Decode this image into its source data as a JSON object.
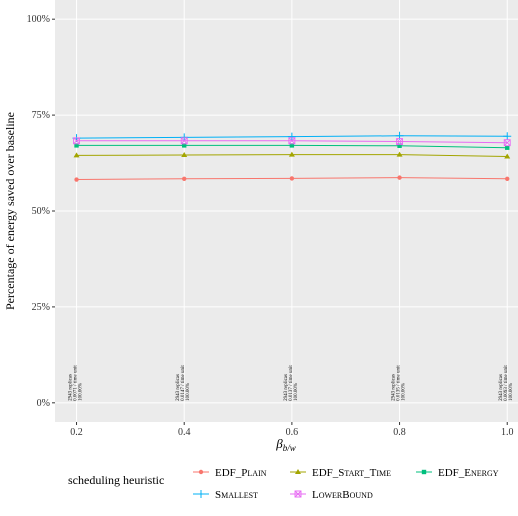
{
  "chart_data": {
    "type": "line",
    "x_label": "β",
    "x_label_sub": "b/w",
    "y_label": "Percentage of energy saved over baseline",
    "legend_title": "scheduling heuristic",
    "x": [
      0.2,
      0.4,
      0.6,
      0.8,
      1.0
    ],
    "xlim": [
      0.16,
      1.02
    ],
    "xticks": [
      {
        "value": 0.2,
        "label": "0.2"
      },
      {
        "value": 0.4,
        "label": "0.4"
      },
      {
        "value": 0.6,
        "label": "0.6"
      },
      {
        "value": 0.8,
        "label": "0.8"
      },
      {
        "value": 1.0,
        "label": "1.0"
      }
    ],
    "ylim": [
      -5,
      105
    ],
    "yticks": [
      {
        "value": 0,
        "label": "0%"
      },
      {
        "value": 25,
        "label": "25%"
      },
      {
        "value": 50,
        "label": "50%"
      },
      {
        "value": 75,
        "label": "75%"
      },
      {
        "value": 100,
        "label": "100%"
      }
    ],
    "grid": true,
    "legend_position": "bottom",
    "series": [
      {
        "name": "EDF_Plain",
        "color": "#F8766D",
        "shape": "circle",
        "values": [
          58.2,
          58.4,
          58.5,
          58.7,
          58.4
        ]
      },
      {
        "name": "EDF_Start_Time",
        "color": "#A3A500",
        "shape": "triangle",
        "values": [
          64.5,
          64.6,
          64.7,
          64.7,
          64.2
        ]
      },
      {
        "name": "EDF_Energy",
        "color": "#00BF7D",
        "shape": "square",
        "values": [
          67.1,
          67.1,
          67.1,
          67.0,
          66.5
        ]
      },
      {
        "name": "Smallest",
        "color": "#00B0F6",
        "shape": "plus",
        "values": [
          69.0,
          69.2,
          69.4,
          69.6,
          69.5
        ]
      },
      {
        "name": "LowerBound",
        "color": "#E76BF3",
        "shape": "boxx",
        "values": [
          68.3,
          68.3,
          68.3,
          68.1,
          67.8
        ]
      }
    ],
    "annotations": [
      {
        "x": 0.2,
        "y": 0,
        "lines": [
          "2943 replicas",
          "0.0071 / time unit",
          "100.00%"
        ]
      },
      {
        "x": 0.4,
        "y": 0,
        "lines": [
          "2943 replicas",
          "0.0147 / time unit",
          "100.00%"
        ]
      },
      {
        "x": 0.6,
        "y": 0,
        "lines": [
          "2943 replicas",
          "0.0137 / time unit",
          "100.00%"
        ]
      },
      {
        "x": 0.8,
        "y": 0,
        "lines": [
          "2943 replicas",
          "0.0135 / time unit",
          "100.00%"
        ]
      },
      {
        "x": 1.0,
        "y": 0,
        "lines": [
          "2943 replicas",
          "0.0093 / time unit",
          "100.00%"
        ]
      }
    ]
  }
}
